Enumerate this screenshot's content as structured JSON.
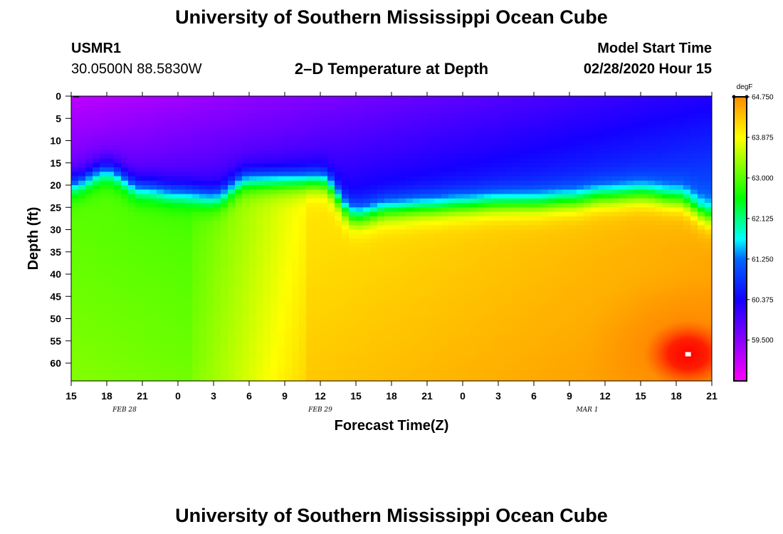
{
  "header": {
    "title_top": "University of Southern Mississippi Ocean Cube",
    "title_bottom": "University of Southern Mississippi Ocean Cube",
    "station": "USMR1",
    "coords": "30.0500N 88.5830W",
    "plot_title": "2–D Temperature at Depth",
    "model_start_label": "Model Start Time",
    "model_start_value": "02/28/2020 Hour 15"
  },
  "chart_data": {
    "type": "heatmap",
    "title": "2–D Temperature at Depth",
    "xlabel": "Forecast Time(Z)",
    "ylabel": "Depth (ft)",
    "x_tick_labels": [
      "15",
      "18",
      "21",
      "0",
      "3",
      "6",
      "9",
      "12",
      "15",
      "18",
      "21",
      "0",
      "3",
      "6",
      "9",
      "12",
      "15",
      "18",
      "21"
    ],
    "x_hours_range": [
      0,
      54
    ],
    "date_labels": [
      {
        "text": "FEB 28",
        "hour": 4.5
      },
      {
        "text": "FEB 29",
        "hour": 21
      },
      {
        "text": "MAR 1",
        "hour": 43.5
      }
    ],
    "y_ticks": [
      0,
      5,
      10,
      15,
      20,
      25,
      30,
      35,
      40,
      45,
      50,
      55,
      60
    ],
    "ylim": [
      0,
      64
    ],
    "colorbar": {
      "unit": "degF",
      "min": 58.62,
      "max": 64.75,
      "tick_labels": [
        "64.750",
        "63.875",
        "63.000",
        "62.125",
        "61.250",
        "60.375",
        "59.500"
      ],
      "tick_values": [
        64.75,
        63.875,
        63.0,
        62.125,
        61.25,
        60.375,
        59.5
      ]
    },
    "thermocline": {
      "hours": [
        0,
        3,
        6,
        9,
        12,
        15,
        18,
        21,
        24,
        27,
        30,
        33,
        36,
        39,
        42,
        45,
        48,
        51,
        54
      ],
      "depth_ft": [
        20,
        17,
        21,
        22,
        23,
        19,
        19,
        19,
        27,
        25.5,
        25,
        24.5,
        24,
        24,
        23.5,
        22.5,
        22,
        23,
        27
      ]
    },
    "surface_layer_temp_range": [
      59.0,
      61.0
    ],
    "deep_temp_range": [
      62.8,
      64.6
    ],
    "hotspot": {
      "hour": 52,
      "depth_ft": 58,
      "temp": 64.75
    }
  },
  "colors": {
    "magenta": "#ff00ff",
    "purple": "#8a00ff",
    "blue": "#0030ff",
    "cyan": "#00ffff",
    "green": "#00ff00",
    "yellow": "#ffff00",
    "orange": "#ff8c00",
    "red": "#ff0000"
  }
}
